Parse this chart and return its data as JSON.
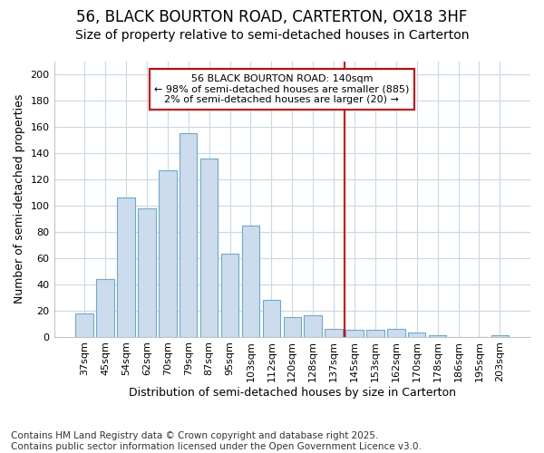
{
  "title_line1": "56, BLACK BOURTON ROAD, CARTERTON, OX18 3HF",
  "title_line2": "Size of property relative to semi-detached houses in Carterton",
  "xlabel": "Distribution of semi-detached houses by size in Carterton",
  "ylabel": "Number of semi-detached properties",
  "categories": [
    "37sqm",
    "45sqm",
    "54sqm",
    "62sqm",
    "70sqm",
    "79sqm",
    "87sqm",
    "95sqm",
    "103sqm",
    "112sqm",
    "120sqm",
    "128sqm",
    "137sqm",
    "145sqm",
    "153sqm",
    "162sqm",
    "170sqm",
    "178sqm",
    "186sqm",
    "195sqm",
    "203sqm"
  ],
  "values": [
    18,
    44,
    106,
    98,
    127,
    155,
    136,
    63,
    85,
    28,
    15,
    16,
    6,
    5,
    5,
    6,
    3,
    1,
    0,
    0,
    1
  ],
  "bar_color": "#ccdcec",
  "bar_edge_color": "#6aaad4",
  "vline_x_index": 12.5,
  "vline_color": "#cc0000",
  "annotation_title": "56 BLACK BOURTON ROAD: 140sqm",
  "annotation_line2": "← 98% of semi-detached houses are smaller (885)",
  "annotation_line3": "2% of semi-detached houses are larger (20) →",
  "annotation_box_facecolor": "white",
  "annotation_box_edgecolor": "#cc0000",
  "ylim": [
    0,
    210
  ],
  "yticks": [
    0,
    20,
    40,
    60,
    80,
    100,
    120,
    140,
    160,
    180,
    200
  ],
  "bg_color": "#ffffff",
  "grid_color": "#c8d8e8",
  "title_fontsize": 12,
  "subtitle_fontsize": 10,
  "tick_fontsize": 8,
  "ylabel_fontsize": 9,
  "xlabel_fontsize": 9,
  "annot_fontsize": 8,
  "footer_fontsize": 7.5
}
